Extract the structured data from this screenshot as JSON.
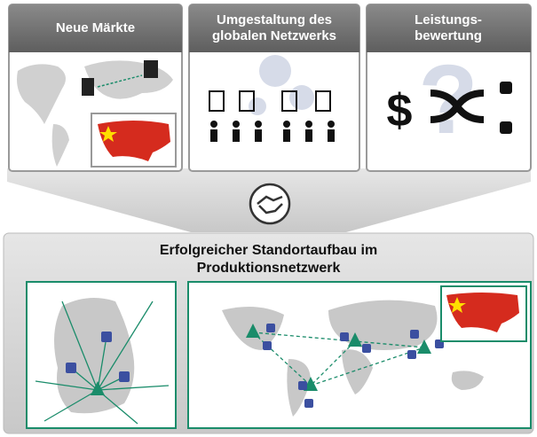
{
  "panels": [
    {
      "title": "Neue Märkte"
    },
    {
      "title": "Umgestaltung des globalen Netzwerks"
    },
    {
      "title": "Leistungs-bewertung"
    }
  ],
  "bottom": {
    "title": "Erfolgreicher Standortaufbau im Produktionsnetzwerk"
  }
}
